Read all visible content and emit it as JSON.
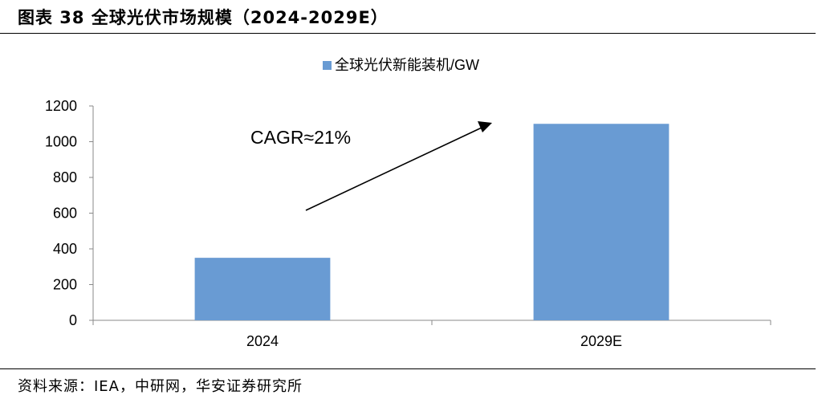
{
  "figure": {
    "title": "图表 38 全球光伏市场规模（2024-2029E）",
    "source": "资料来源：IEA，中研网，华安证券研究所"
  },
  "chart_data": {
    "type": "bar",
    "categories": [
      "2024",
      "2029E"
    ],
    "series": [
      {
        "name": "全球光伏新能装机/GW",
        "values": [
          350,
          1100
        ],
        "color": "#699BD3"
      }
    ],
    "ylim": [
      0,
      1200
    ],
    "yticks": [
      "0",
      "200",
      "400",
      "600",
      "800",
      "1000",
      "1200"
    ],
    "xlabel": "",
    "ylabel": "",
    "grid": false,
    "legend": "top",
    "annotation": {
      "text": "CAGR≈21%",
      "arrow": true
    }
  }
}
